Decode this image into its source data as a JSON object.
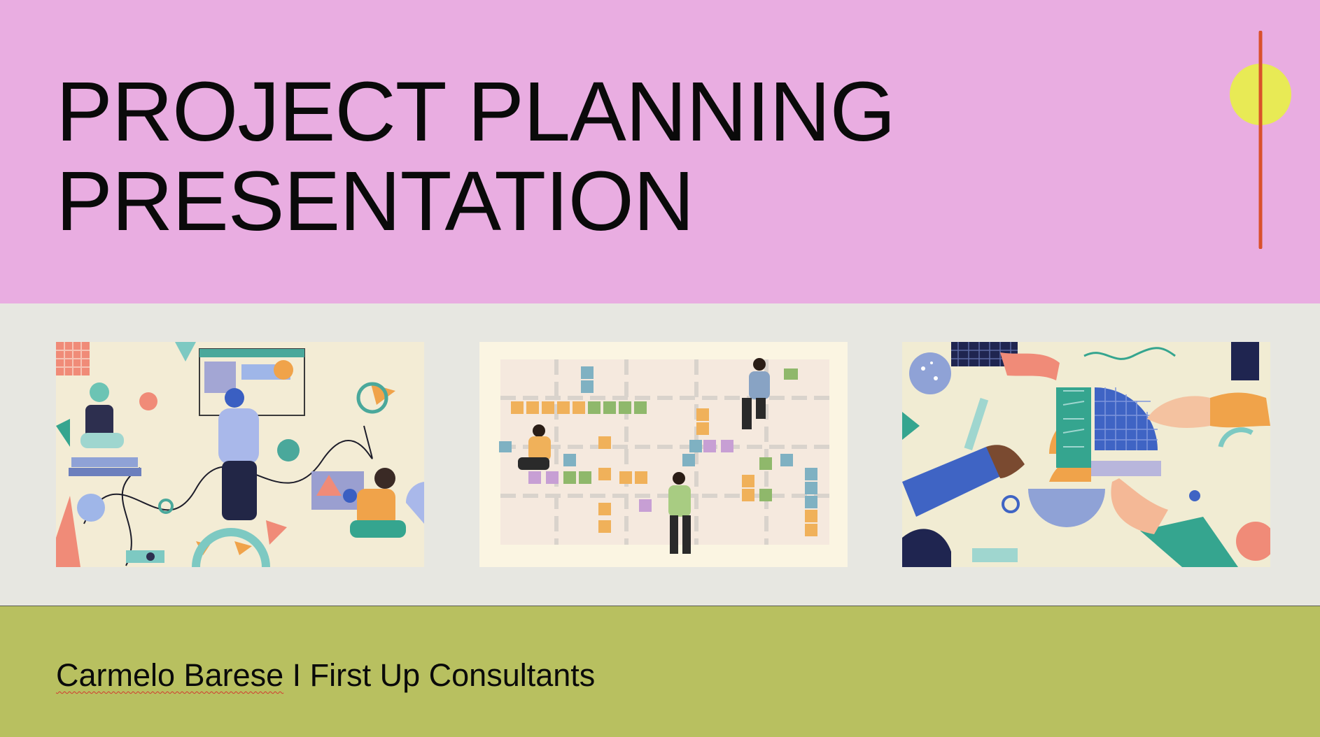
{
  "slide": {
    "title_line1": "PROJECT PLANNING",
    "title_line2": "PRESENTATION",
    "footer": {
      "author": "Carmelo Barese",
      "separator": " I ",
      "company": "First Up Consultants"
    }
  },
  "images": [
    {
      "icon": "illustration-team-brainstorm-icon"
    },
    {
      "icon": "illustration-sticky-notes-board-icon"
    },
    {
      "icon": "illustration-hands-puzzle-icon"
    }
  ],
  "colors": {
    "header": "#e9ade1",
    "middle": "#e7e7e1",
    "footer": "#b8c060",
    "accent_circle": "#e8ea55",
    "accent_line": "#d9512c",
    "spellcheck": "#d23a2f"
  }
}
